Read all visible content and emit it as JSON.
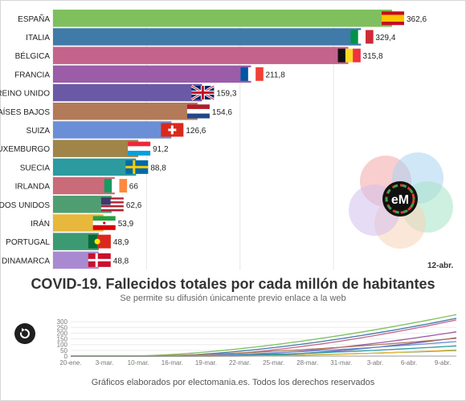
{
  "chart_data": {
    "type": "bar",
    "orientation": "horizontal",
    "title": "COVID-19. Fallecidos totales por cada millón de habitantes",
    "subtitle": "Se permite su difusión únicamente previo enlace a la web",
    "date_label": "12-abr.",
    "categories": [
      "ESPAÑA",
      "ITALIA",
      "BÉLGICA",
      "FRANCIA",
      "REINO UNIDO",
      "PAÍSES BAJOS",
      "SUIZA",
      "LUXEMBURGO",
      "SUECIA",
      "IRLANDA",
      "ESTADOS UNIDOS",
      "IRÁN",
      "PORTUGAL",
      "DINAMARCA"
    ],
    "values": [
      362.6,
      329.4,
      315.8,
      211.8,
      159.3,
      154.6,
      126.6,
      91.2,
      88.8,
      66,
      62.6,
      53.9,
      48.9,
      48.8
    ],
    "value_labels": [
      "362,6",
      "329,4",
      "315,8",
      "211,8",
      "159,3",
      "154,6",
      "126,6",
      "91,2",
      "88,8",
      "66",
      "62,6",
      "53,9",
      "48,9",
      "48,8"
    ],
    "colors": [
      "#7fbf5e",
      "#3f7aa8",
      "#c4638c",
      "#9b5ca8",
      "#6a5aa6",
      "#b27a58",
      "#6b8fd6",
      "#a08448",
      "#2b9ba0",
      "#c96b78",
      "#4f9e72",
      "#e8b83d",
      "#3c9a73",
      "#a98ad0"
    ],
    "flags": [
      "spain",
      "italy",
      "belgium",
      "france",
      "uk",
      "netherlands",
      "switzerland",
      "luxembourg",
      "sweden",
      "ireland",
      "usa",
      "iran",
      "portugal",
      "denmark"
    ],
    "xlim": [
      0,
      362.6
    ],
    "grid": true,
    "timeline": {
      "x_ticks": [
        "20-ene.",
        "3-mar.",
        "10-mar.",
        "16-mar.",
        "19-mar.",
        "22-mar.",
        "25-mar.",
        "28-mar.",
        "31-mar.",
        "3-abr.",
        "6-abr.",
        "9-abr."
      ],
      "y_ticks": [
        0,
        50,
        100,
        150,
        200,
        250,
        300
      ],
      "ylim": [
        0,
        350
      ],
      "series_colors": [
        "#7fbf5e",
        "#3f7aa8",
        "#c4638c",
        "#9b5ca8",
        "#6a5aa6",
        "#b27a58",
        "#6b8fd6",
        "#2b9ba0",
        "#3c9a73",
        "#e8b83d"
      ],
      "series_end_values": [
        362.6,
        329.4,
        315.8,
        211.8,
        159.3,
        154.6,
        126.6,
        88.8,
        48.9,
        53.9
      ]
    }
  },
  "footer": "Gráficos elaborados por electomania.es. Todos los derechos reservados",
  "logo_text": "eM",
  "replay_icon": "replay-icon"
}
